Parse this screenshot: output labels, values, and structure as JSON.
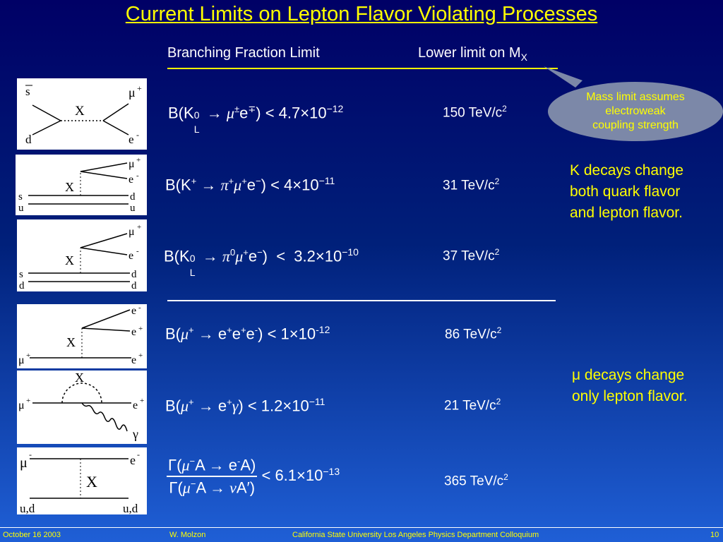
{
  "title": "Current Limits on Lepton Flavor Violating Processes",
  "header": {
    "branching": "Branching Fraction Limit",
    "lower_limit": "Lower limit on M",
    "lower_limit_sub": "X"
  },
  "bubble": {
    "lines": [
      "Mass limit assumes",
      "electroweak",
      "coupling strength"
    ]
  },
  "kaon_note": [
    "K decays change",
    "both quark flavor",
    "and lepton flavor."
  ],
  "muon_note": [
    "μ decays change",
    "only lepton flavor."
  ],
  "processes": [
    {
      "mass": "150 TeV/c",
      "mass_exp": "2",
      "limit_mant": "4.7",
      "limit_exp": "−12"
    },
    {
      "mass": "31 TeV/c",
      "mass_exp": "2",
      "limit_mant": "4",
      "limit_exp": "−11"
    },
    {
      "mass": "37 TeV/c",
      "mass_exp": "2",
      "limit_mant": "3.2",
      "limit_exp": "−10"
    },
    {
      "mass": "86 TeV/c",
      "mass_exp": "2",
      "limit_mant": "1",
      "limit_exp": "-12"
    },
    {
      "mass": "21 TeV/c",
      "mass_exp": "2",
      "limit_mant": "1.2",
      "limit_exp": "−11"
    },
    {
      "mass": "365 TeV/c",
      "mass_exp": "2",
      "limit_mant": "6.1",
      "limit_exp": "−13"
    }
  ],
  "diagrams": {
    "d1": {
      "s": "s",
      "d": "d",
      "x": "X",
      "mu": "μ",
      "e": "e",
      "sup_plus": "+",
      "sup_minus": "-"
    },
    "d2": {
      "x": "X",
      "mu": "μ",
      "e": "e",
      "s": "s",
      "u": "u",
      "d": "d",
      "u2": "u"
    },
    "d3": {
      "x": "X",
      "mu": "μ",
      "e": "e",
      "s": "s",
      "d": "d",
      "d2": "d"
    },
    "d4": {
      "x": "X",
      "mu": "μ",
      "e1": "e",
      "e2": "e",
      "e3": "e"
    },
    "d5": {
      "x": "X",
      "mu": "μ",
      "e": "e",
      "gamma": "γ"
    },
    "d6": {
      "x": "X",
      "mu": "μ",
      "e": "e",
      "ud_left": "u,d",
      "ud_right": "u,d"
    }
  },
  "footer": {
    "date": "October 16 2003",
    "author": "W. Molzon",
    "venue": "California State University Los Angeles Physics Department  Colloquium",
    "page": "10"
  },
  "colors": {
    "title": "#ffff00",
    "accent_line": "#ffff00",
    "bubble": "#7c88a8"
  }
}
